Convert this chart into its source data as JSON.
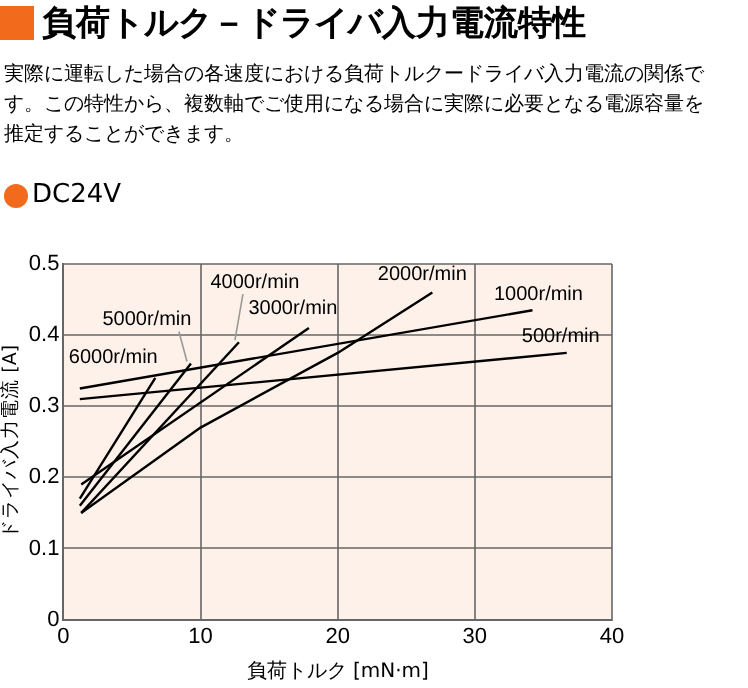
{
  "chart_data": {
    "type": "line",
    "title": "負荷トルク－ドライバ入力電流特性",
    "subtitle": "実際に運転した場合の各速度における負荷トルクードライバ入力電流の関係です。この特性から、複数軸でご使用になる場合に実際に必要となる電源容量を推定することができます。",
    "annotations": [
      "DC24V"
    ],
    "xlabel": "負荷トルク [mN·m]",
    "ylabel": "ドライバ入力電流 [A]",
    "xlim": [
      0,
      40
    ],
    "xticks": [
      0,
      10,
      20,
      30,
      40
    ],
    "ylim": [
      0,
      0.5
    ],
    "yticks": [
      0,
      0.1,
      0.2,
      0.3,
      0.4,
      0.5
    ],
    "grid": true,
    "legend": false,
    "marker": "none",
    "line_style": "solid",
    "series": [
      {
        "name": "6000r/min",
        "color": "#000000",
        "x": [
          1.2,
          6.7
        ],
        "values": [
          0.17,
          0.34
        ]
      },
      {
        "name": "5000r/min",
        "color": "#000000",
        "x": [
          1.2,
          9.3
        ],
        "values": [
          0.16,
          0.36
        ]
      },
      {
        "name": "4000r/min",
        "color": "#000000",
        "x": [
          1.3,
          12.8
        ],
        "values": [
          0.15,
          0.39
        ]
      },
      {
        "name": "3000r/min",
        "color": "#000000",
        "x": [
          1.3,
          17.9
        ],
        "values": [
          0.19,
          0.41
        ]
      },
      {
        "name": "2000r/min",
        "color": "#000000",
        "x": [
          1.3,
          10,
          20,
          26.9
        ],
        "values": [
          0.15,
          0.27,
          0.375,
          0.46
        ]
      },
      {
        "name": "1000r/min",
        "color": "#000000",
        "x": [
          1.2,
          34.2
        ],
        "values": [
          0.325,
          0.435
        ]
      },
      {
        "name": "500r/min",
        "color": "#000000",
        "x": [
          1.2,
          36.7
        ],
        "values": [
          0.31,
          0.375
        ]
      }
    ]
  }
}
